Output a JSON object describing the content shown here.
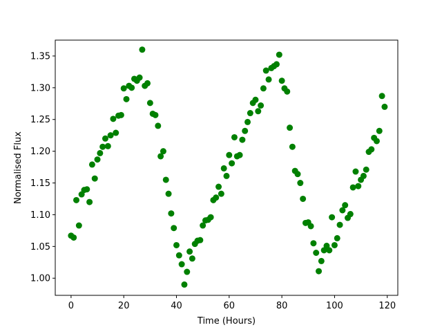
{
  "chart_data": {
    "type": "scatter",
    "xlabel": "Time (Hours)",
    "ylabel": "Normalised Flux",
    "xlim": [
      -6,
      124
    ],
    "ylim": [
      0.973,
      1.375
    ],
    "x_ticks": [
      0,
      20,
      40,
      60,
      80,
      100,
      120
    ],
    "y_ticks": [
      1.0,
      1.05,
      1.1,
      1.15,
      1.2,
      1.25,
      1.3,
      1.35
    ],
    "x_tick_labels": [
      "0",
      "20",
      "40",
      "60",
      "80",
      "100",
      "120"
    ],
    "y_tick_labels": [
      "1.00",
      "1.05",
      "1.10",
      "1.15",
      "1.20",
      "1.25",
      "1.30",
      "1.35"
    ],
    "grid": false,
    "marker_color": "#008000",
    "series": [
      {
        "x": [
          0,
          1,
          2,
          3,
          4,
          5,
          6,
          7,
          8,
          9,
          10,
          11,
          12,
          13,
          14,
          15,
          16,
          17,
          18,
          19,
          20,
          21,
          22,
          23,
          24,
          25,
          26,
          27,
          28,
          29,
          30,
          31,
          32,
          33,
          34,
          35,
          36,
          37,
          38,
          39,
          40,
          41,
          42,
          43,
          44,
          45,
          46,
          47,
          48,
          49,
          50,
          51,
          52,
          53,
          54,
          55,
          56,
          57,
          58,
          59,
          60,
          61,
          62,
          63,
          64,
          65,
          66,
          67,
          68,
          69,
          70,
          71,
          72,
          73,
          74,
          75,
          76,
          77,
          78,
          79,
          80,
          81,
          82,
          83,
          84,
          85,
          86,
          87,
          88,
          89,
          90,
          91,
          92,
          93,
          94,
          95,
          96,
          97,
          98,
          99,
          100,
          101,
          102,
          103,
          104,
          105,
          106,
          107,
          108,
          109,
          110,
          111,
          112,
          113,
          114,
          115,
          116,
          117,
          118,
          119
        ],
        "y": [
          1.067,
          1.064,
          1.123,
          1.083,
          1.132,
          1.139,
          1.14,
          1.12,
          1.179,
          1.157,
          1.187,
          1.197,
          1.207,
          1.22,
          1.208,
          1.225,
          1.251,
          1.229,
          1.256,
          1.257,
          1.299,
          1.282,
          1.303,
          1.3,
          1.314,
          1.311,
          1.316,
          1.36,
          1.303,
          1.307,
          1.276,
          1.259,
          1.257,
          1.24,
          1.192,
          1.2,
          1.155,
          1.133,
          1.102,
          1.079,
          1.052,
          1.036,
          1.022,
          0.99,
          1.01,
          1.042,
          1.031,
          1.054,
          1.059,
          1.06,
          1.083,
          1.091,
          1.092,
          1.096,
          1.123,
          1.127,
          1.144,
          1.133,
          1.173,
          1.161,
          1.194,
          1.181,
          1.222,
          1.192,
          1.194,
          1.218,
          1.232,
          1.246,
          1.26,
          1.276,
          1.281,
          1.263,
          1.272,
          1.299,
          1.327,
          1.313,
          1.331,
          1.334,
          1.337,
          1.352,
          1.311,
          1.299,
          1.294,
          1.237,
          1.207,
          1.169,
          1.164,
          1.15,
          1.125,
          1.087,
          1.088,
          1.082,
          1.055,
          1.04,
          1.011,
          1.027,
          1.044,
          1.051,
          1.044,
          1.096,
          1.052,
          1.063,
          1.084,
          1.107,
          1.115,
          1.095,
          1.101,
          1.143,
          1.168,
          1.145,
          1.155,
          1.161,
          1.171,
          1.199,
          1.203,
          1.221,
          1.216,
          1.232,
          1.287,
          1.27
        ]
      }
    ]
  }
}
